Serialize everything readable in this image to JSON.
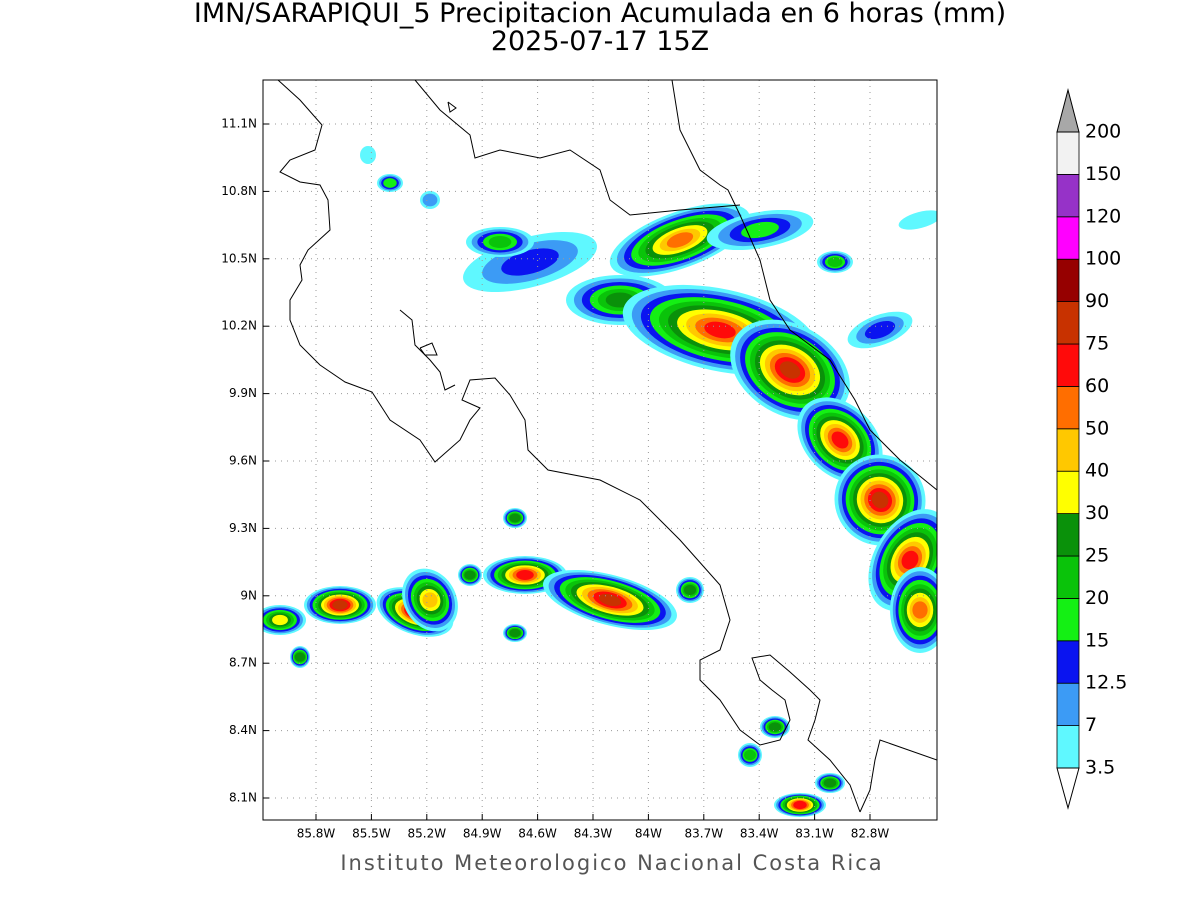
{
  "title": "IMN/SARAPIQUI_5 Precipitacion Acumulada en 6 horas (mm)",
  "subtitle": "2025-07-17 15Z",
  "lat_labels": [
    "11.1N",
    "10.8N",
    "10.5N",
    "10.2N",
    "9.9N",
    "9.6N",
    "9.3N",
    "9N",
    "8.7N",
    "8.4N",
    "8.1N"
  ],
  "lon_labels": [
    "85.8W",
    "85.5W",
    "85.2W",
    "84.9W",
    "84.6W",
    "84.3W",
    "84W",
    "83.7W",
    "83.4W",
    "83.1W",
    "82.8W"
  ],
  "colorbar": {
    "levels": [
      3.5,
      7,
      12.5,
      15,
      20,
      25,
      30,
      40,
      50,
      60,
      75,
      90,
      100,
      120,
      150,
      200
    ],
    "colors": [
      "#5ff8ff",
      "#3c9bf5",
      "#0a14f0",
      "#14f014",
      "#0ac30a",
      "#0a910a",
      "#ffff00",
      "#ffc800",
      "#ff6e00",
      "#ff0a0a",
      "#c83200",
      "#960000",
      "#ff00ff",
      "#9632c8",
      "#f2f2f2"
    ],
    "under_color": "#ffffff",
    "over_color": "#a8a8a8"
  },
  "footer": "Instituto Meteorologico Nacional Costa Rica"
}
